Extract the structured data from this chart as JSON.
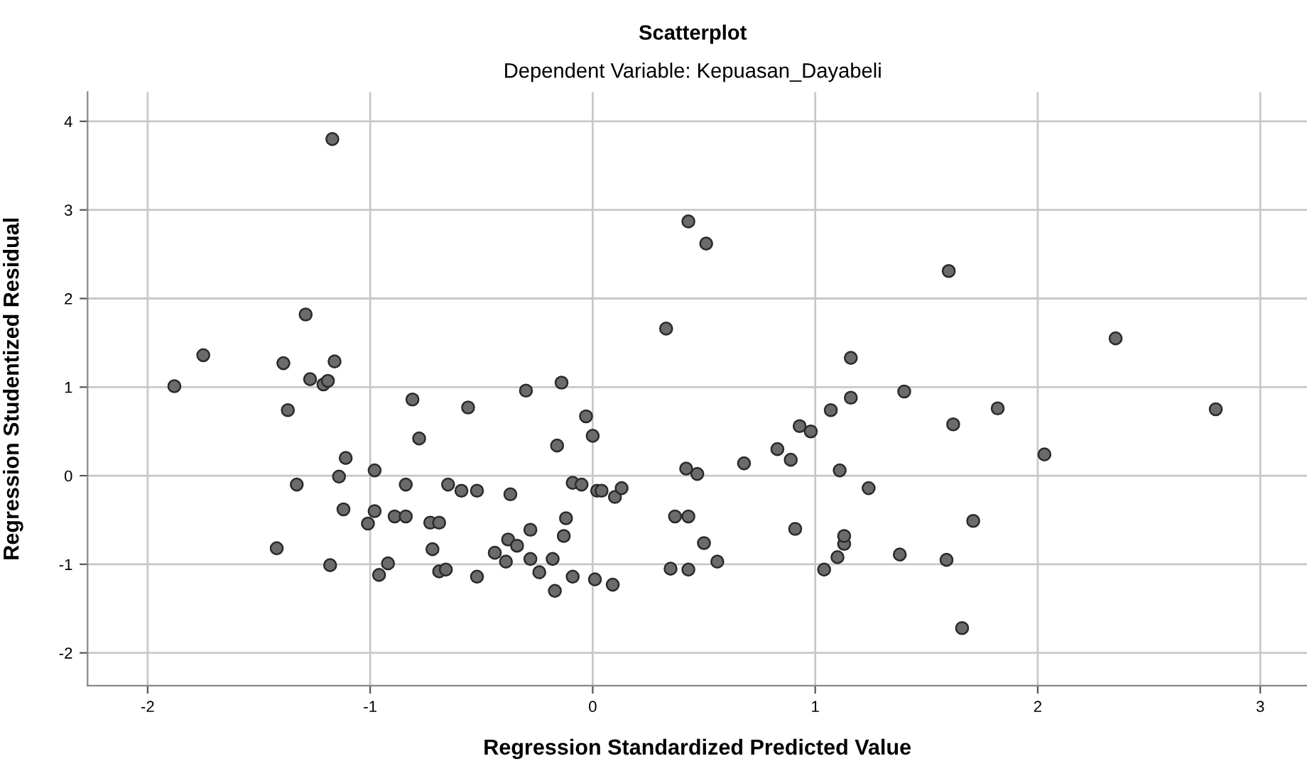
{
  "chart_data": {
    "type": "scatter",
    "title": "Scatterplot",
    "subtitle": "Dependent Variable: Kepuasan_Dayabeli",
    "xlabel": "Regression Standardized Predicted Value",
    "ylabel": "Regression Studentized Residual",
    "xlim": [
      -2.27,
      3.21
    ],
    "ylim": [
      -2.37,
      4.33
    ],
    "xticks": [
      -2,
      -1,
      0,
      1,
      2,
      3
    ],
    "yticks": [
      -2,
      -1,
      0,
      1,
      2,
      3,
      4
    ],
    "grid": true,
    "marker": "circle",
    "series": [
      {
        "color": "#6b6b6b",
        "x": [
          -1.88,
          -1.75,
          -1.39,
          -1.37,
          -1.29,
          -1.27,
          -1.21,
          -1.19,
          -1.16,
          -1.17,
          -1.11,
          -1.14,
          -1.33,
          -1.12,
          -1.42,
          -1.18,
          -0.81,
          -0.78,
          -0.56,
          -0.98,
          -0.98,
          -1.01,
          -0.84,
          -0.65,
          -0.59,
          -0.52,
          -0.89,
          -0.84,
          -0.73,
          -0.69,
          -0.72,
          -0.92,
          -0.96,
          -0.69,
          -0.66,
          -0.52,
          -0.37,
          -0.3,
          -0.14,
          -0.03,
          0.0,
          -0.16,
          -0.09,
          -0.05,
          0.02,
          0.04,
          0.1,
          0.13,
          -0.12,
          -0.13,
          -0.28,
          -0.38,
          -0.34,
          -0.44,
          -0.39,
          -0.28,
          -0.24,
          -0.18,
          -0.17,
          -0.09,
          0.01,
          0.09,
          0.33,
          0.43,
          0.51,
          0.42,
          0.47,
          0.37,
          0.43,
          0.5,
          0.56,
          0.35,
          0.43,
          0.68,
          0.83,
          0.89,
          0.93,
          0.98,
          1.07,
          1.11,
          0.91,
          1.04,
          1.1,
          1.13,
          1.13,
          1.16,
          1.16,
          1.24,
          1.4,
          1.6,
          1.62,
          1.82,
          2.03,
          2.35,
          2.8,
          1.71,
          1.38,
          1.59,
          1.66
        ],
        "values": [
          1.01,
          1.36,
          1.27,
          0.74,
          1.82,
          1.09,
          1.03,
          1.07,
          1.29,
          3.8,
          0.2,
          -0.01,
          -0.1,
          -0.38,
          -0.82,
          -1.01,
          0.86,
          0.42,
          0.77,
          0.06,
          -0.4,
          -0.54,
          -0.1,
          -0.1,
          -0.17,
          -0.17,
          -0.46,
          -0.46,
          -0.53,
          -0.53,
          -0.83,
          -0.99,
          -1.12,
          -1.08,
          -1.06,
          -1.14,
          -0.21,
          0.96,
          1.05,
          0.67,
          0.45,
          0.34,
          -0.08,
          -0.1,
          -0.17,
          -0.17,
          -0.24,
          -0.14,
          -0.48,
          -0.68,
          -0.61,
          -0.72,
          -0.79,
          -0.87,
          -0.97,
          -0.94,
          -1.09,
          -0.94,
          -1.3,
          -1.14,
          -1.17,
          -1.23,
          1.66,
          2.87,
          2.62,
          0.08,
          0.02,
          -0.46,
          -0.46,
          -0.76,
          -0.97,
          -1.05,
          -1.06,
          0.14,
          0.3,
          0.18,
          0.56,
          0.5,
          0.74,
          0.06,
          -0.6,
          -1.06,
          -0.92,
          -0.77,
          -0.68,
          1.33,
          0.88,
          -0.14,
          0.95,
          2.31,
          0.58,
          0.76,
          0.24,
          1.55,
          0.75,
          -0.51,
          -0.89,
          -0.95,
          -1.72
        ]
      }
    ]
  }
}
